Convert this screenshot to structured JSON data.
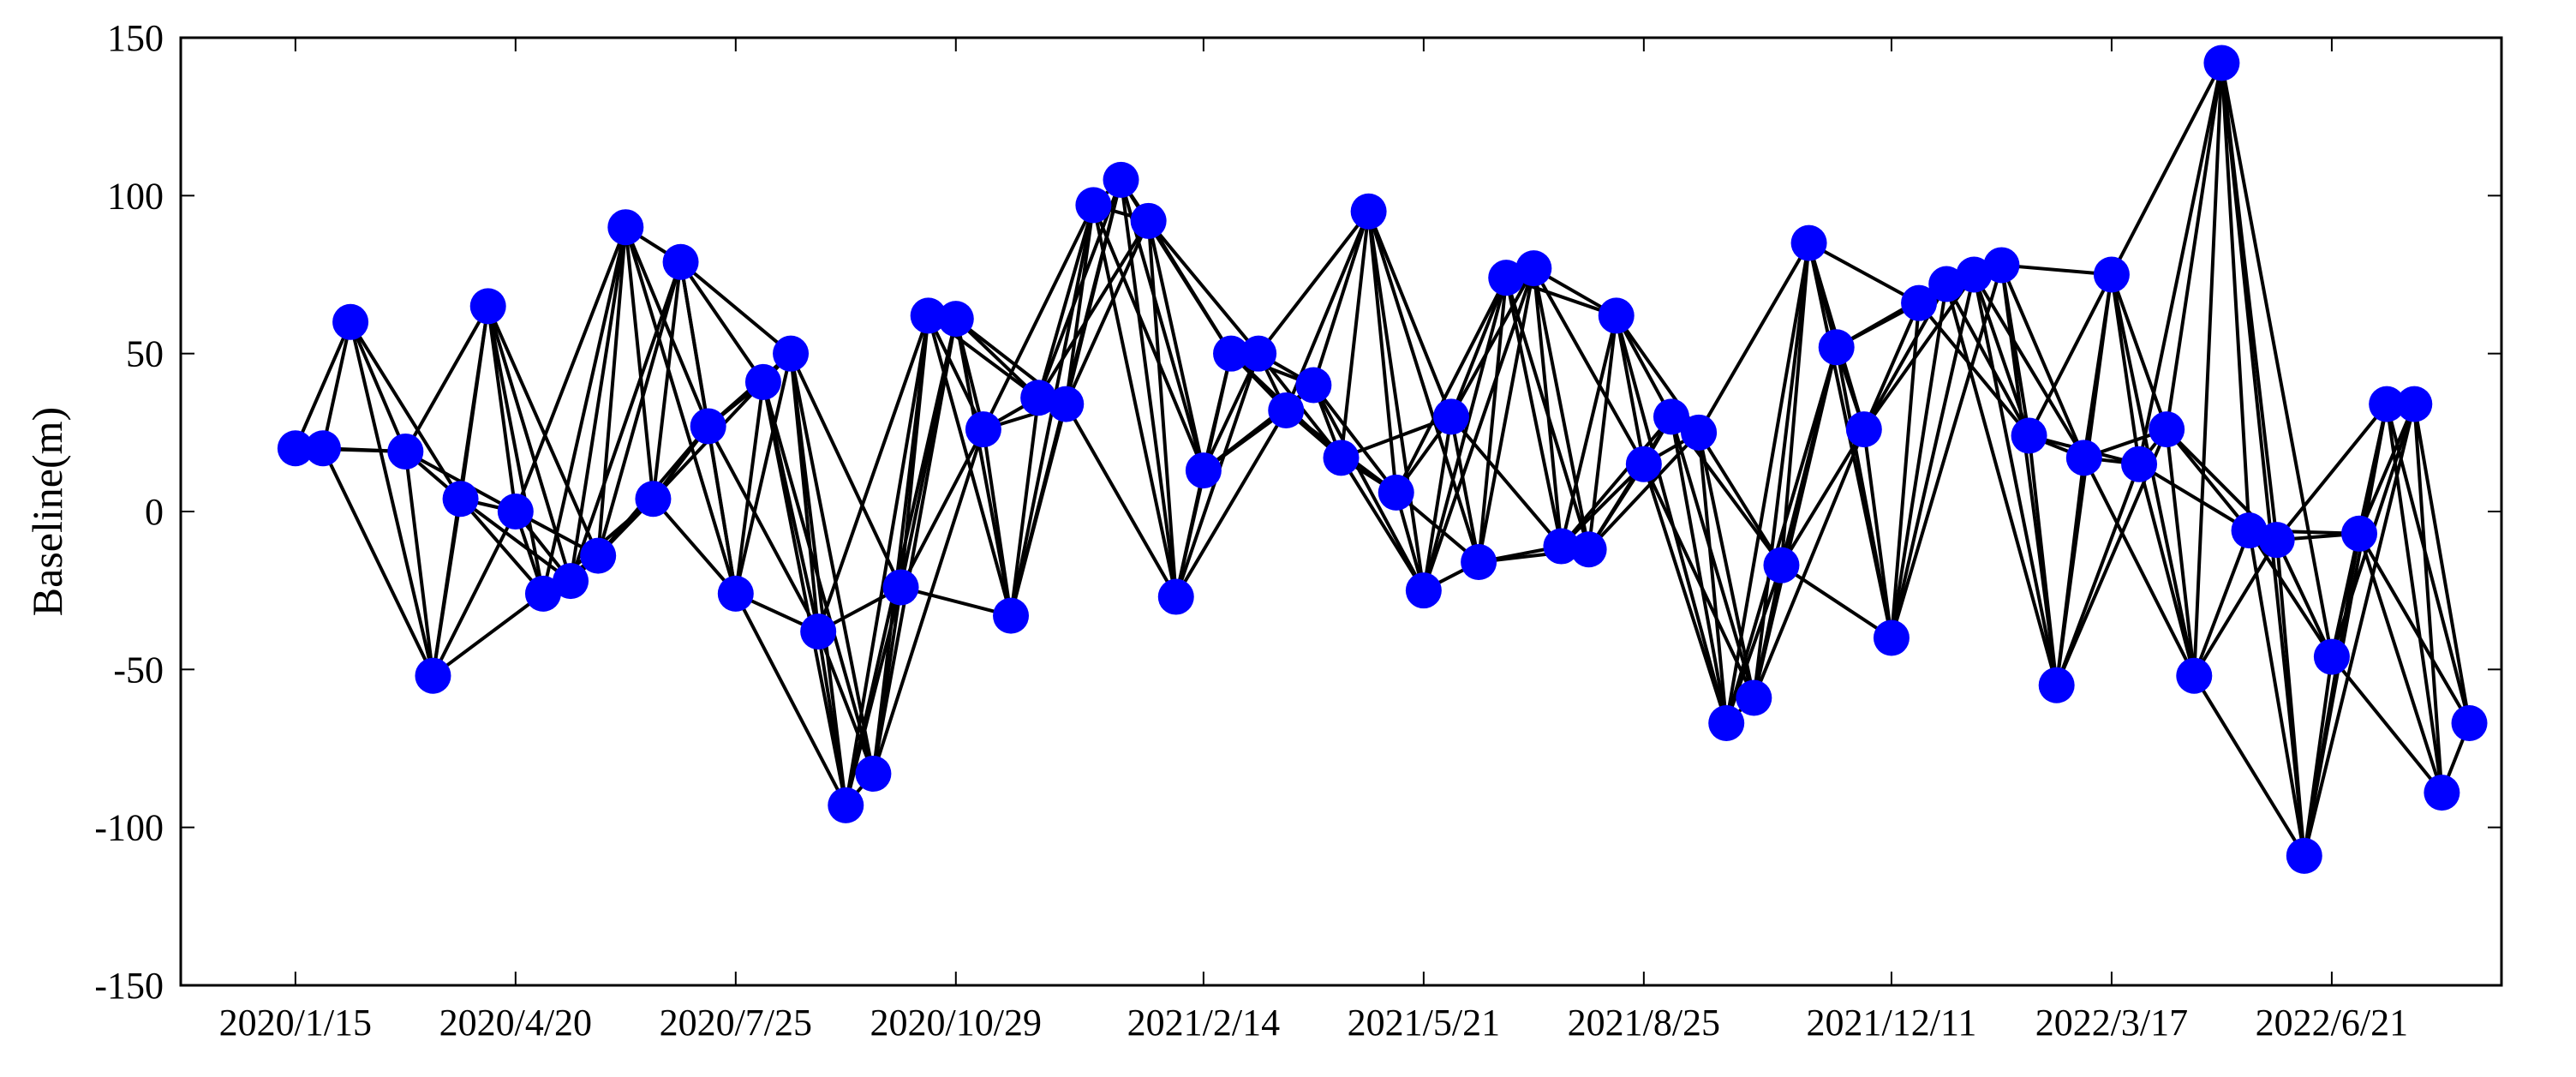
{
  "chart_data": {
    "type": "scatter",
    "title": "",
    "xlabel": "",
    "ylabel": "Baseline(m)",
    "ylim": [
      -150,
      150
    ],
    "yticks": [
      150,
      100,
      50,
      0,
      -50,
      -100,
      -150
    ],
    "ytick_labels": [
      "150",
      "100",
      "50",
      "0",
      "-50",
      "-100",
      "-150"
    ],
    "xlim": [
      "2019-11-26",
      "2022-09-03"
    ],
    "xticks": [
      "2020-01-15",
      "2020-04-20",
      "2020-07-25",
      "2020-10-29",
      "2021-02-14",
      "2021-05-21",
      "2021-08-25",
      "2021-12-11",
      "2022-03-17",
      "2022-06-21"
    ],
    "xtick_labels": [
      "2020/1/15",
      "2020/4/20",
      "2020/7/25",
      "2020/10/29",
      "2021/2/14",
      "2021/5/21",
      "2021/8/25",
      "2021/12/11",
      "2022/3/17",
      "2022/6/21"
    ],
    "grid": false,
    "marker_color": "#0000ff",
    "line_color": "#000000",
    "points": [
      {
        "x": "2020-01-15",
        "y": 20
      },
      {
        "x": "2020-01-27",
        "y": 20
      },
      {
        "x": "2020-02-08",
        "y": 60
      },
      {
        "x": "2020-03-03",
        "y": 19
      },
      {
        "x": "2020-03-15",
        "y": -52
      },
      {
        "x": "2020-03-27",
        "y": 4
      },
      {
        "x": "2020-04-08",
        "y": 65
      },
      {
        "x": "2020-04-20",
        "y": 0
      },
      {
        "x": "2020-05-02",
        "y": -26
      },
      {
        "x": "2020-05-14",
        "y": -22
      },
      {
        "x": "2020-05-26",
        "y": -14
      },
      {
        "x": "2020-06-07",
        "y": 90
      },
      {
        "x": "2020-06-19",
        "y": 4
      },
      {
        "x": "2020-07-01",
        "y": 79
      },
      {
        "x": "2020-07-13",
        "y": 27
      },
      {
        "x": "2020-07-25",
        "y": -26
      },
      {
        "x": "2020-08-06",
        "y": 41
      },
      {
        "x": "2020-08-18",
        "y": 50
      },
      {
        "x": "2020-08-30",
        "y": -38
      },
      {
        "x": "2020-09-11",
        "y": -93
      },
      {
        "x": "2020-09-23",
        "y": -83
      },
      {
        "x": "2020-10-05",
        "y": -24
      },
      {
        "x": "2020-10-17",
        "y": 62
      },
      {
        "x": "2020-10-29",
        "y": 61
      },
      {
        "x": "2020-11-10",
        "y": 26
      },
      {
        "x": "2020-11-22",
        "y": -33
      },
      {
        "x": "2020-12-04",
        "y": 36
      },
      {
        "x": "2020-12-16",
        "y": 34
      },
      {
        "x": "2020-12-28",
        "y": 97
      },
      {
        "x": "2021-01-09",
        "y": 105
      },
      {
        "x": "2021-01-21",
        "y": 92
      },
      {
        "x": "2021-02-02",
        "y": -27
      },
      {
        "x": "2021-02-14",
        "y": 13
      },
      {
        "x": "2021-02-26",
        "y": 50
      },
      {
        "x": "2021-03-10",
        "y": 50
      },
      {
        "x": "2021-03-22",
        "y": 32
      },
      {
        "x": "2021-04-03",
        "y": 40
      },
      {
        "x": "2021-04-15",
        "y": 17
      },
      {
        "x": "2021-04-27",
        "y": 95
      },
      {
        "x": "2021-05-09",
        "y": 6
      },
      {
        "x": "2021-05-21",
        "y": -25
      },
      {
        "x": "2021-06-02",
        "y": 30
      },
      {
        "x": "2021-06-14",
        "y": -16
      },
      {
        "x": "2021-06-26",
        "y": 74
      },
      {
        "x": "2021-07-08",
        "y": 77
      },
      {
        "x": "2021-07-20",
        "y": -11
      },
      {
        "x": "2021-08-01",
        "y": -12
      },
      {
        "x": "2021-08-13",
        "y": 62
      },
      {
        "x": "2021-08-25",
        "y": 15
      },
      {
        "x": "2021-09-06",
        "y": 30
      },
      {
        "x": "2021-09-18",
        "y": 25
      },
      {
        "x": "2021-09-30",
        "y": -67
      },
      {
        "x": "2021-10-12",
        "y": -59
      },
      {
        "x": "2021-10-24",
        "y": -17
      },
      {
        "x": "2021-11-05",
        "y": 85
      },
      {
        "x": "2021-11-17",
        "y": 52
      },
      {
        "x": "2021-11-29",
        "y": 26
      },
      {
        "x": "2021-12-11",
        "y": -40
      },
      {
        "x": "2021-12-23",
        "y": 66
      },
      {
        "x": "2022-01-04",
        "y": 72
      },
      {
        "x": "2022-01-16",
        "y": 75
      },
      {
        "x": "2022-01-28",
        "y": 78
      },
      {
        "x": "2022-02-09",
        "y": 24
      },
      {
        "x": "2022-02-21",
        "y": -55
      },
      {
        "x": "2022-03-05",
        "y": 17
      },
      {
        "x": "2022-03-17",
        "y": 75
      },
      {
        "x": "2022-03-29",
        "y": 15
      },
      {
        "x": "2022-04-10",
        "y": 26
      },
      {
        "x": "2022-04-22",
        "y": -52
      },
      {
        "x": "2022-05-04",
        "y": 142
      },
      {
        "x": "2022-05-16",
        "y": -6
      },
      {
        "x": "2022-05-28",
        "y": -9
      },
      {
        "x": "2022-06-09",
        "y": -109
      },
      {
        "x": "2022-06-21",
        "y": -46
      },
      {
        "x": "2022-07-03",
        "y": -7
      },
      {
        "x": "2022-07-15",
        "y": 34
      },
      {
        "x": "2022-07-27",
        "y": 34
      },
      {
        "x": "2022-08-08",
        "y": -89
      },
      {
        "x": "2022-08-20",
        "y": -67
      }
    ],
    "connection_max_gap_days": 48
  }
}
